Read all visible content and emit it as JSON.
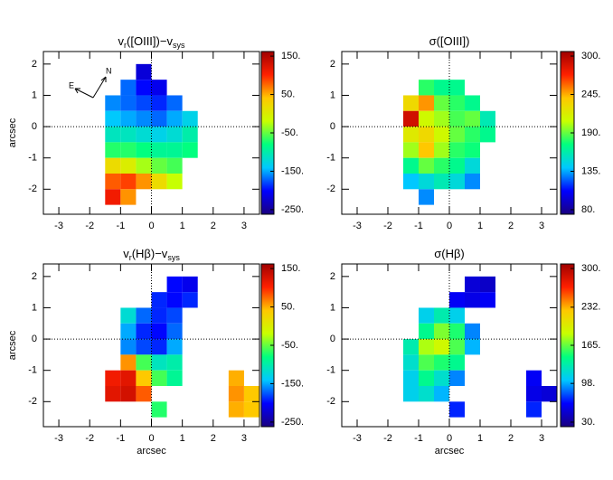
{
  "chart_data": [
    {
      "type": "heatmap",
      "title": [
        "v",
        "r",
        "([OIII])−v",
        "sys"
      ],
      "ylabel": "arcsec",
      "compass": {
        "east": "E",
        "north": "N"
      },
      "cell": 0.5,
      "x": [
        -1.75,
        -1.25,
        -0.75,
        -0.25,
        0.25,
        0.75,
        1.25,
        1.75,
        2.25,
        2.75,
        3.25
      ],
      "y": [
        1.75,
        1.25,
        0.75,
        0.25,
        -0.25,
        -0.75,
        -1.25,
        -1.75,
        -2.25
      ],
      "z": [
        [
          null,
          null,
          null,
          -220,
          null,
          null,
          null,
          null,
          null,
          null,
          null
        ],
        [
          null,
          null,
          -170,
          -200,
          -210,
          null,
          null,
          null,
          null,
          null,
          null
        ],
        [
          null,
          -160,
          -170,
          -180,
          -190,
          -170,
          null,
          null,
          null,
          null,
          null
        ],
        [
          null,
          -140,
          -150,
          -160,
          -170,
          -150,
          -130,
          null,
          null,
          null,
          null
        ],
        [
          null,
          -110,
          -110,
          -120,
          -130,
          -120,
          -100,
          null,
          null,
          null,
          null
        ],
        [
          null,
          -70,
          -70,
          -80,
          -90,
          -90,
          -80,
          null,
          null,
          null,
          null
        ],
        [
          null,
          20,
          0,
          -30,
          -50,
          -60,
          null,
          null,
          null,
          null,
          null
        ],
        [
          null,
          80,
          90,
          60,
          20,
          -20,
          null,
          null,
          null,
          null,
          null
        ],
        [
          null,
          110,
          60,
          null,
          null,
          null,
          null,
          null,
          null,
          null,
          null
        ]
      ],
      "xlim": [
        -3.5,
        3.5
      ],
      "ylim": [
        -2.8,
        2.4
      ],
      "xticks": [
        -3,
        -2,
        -1,
        0,
        1,
        2,
        3
      ],
      "yticks": [
        -2,
        -1,
        0,
        1,
        2
      ],
      "clim": [
        -262,
        162
      ],
      "cticks": [
        {
          "value": 150,
          "label": "150."
        },
        {
          "value": 50,
          "label": "50."
        },
        {
          "value": -50,
          "label": "-50."
        },
        {
          "value": -150,
          "label": "-150."
        },
        {
          "value": -250,
          "label": "-250."
        }
      ],
      "colormap": [
        "#1a0080",
        "#0000ff",
        "#00c8ff",
        "#00ff80",
        "#c8ff00",
        "#ffc800",
        "#ff2000",
        "#a00000"
      ]
    },
    {
      "type": "heatmap",
      "title": [
        "σ([OIII])"
      ],
      "cell": 0.5,
      "x": [
        -1.75,
        -1.25,
        -0.75,
        -0.25,
        0.25,
        0.75,
        1.25,
        1.75,
        2.25,
        2.75,
        3.25
      ],
      "y": [
        1.75,
        1.25,
        0.75,
        0.25,
        -0.25,
        -0.75,
        -1.25,
        -1.75,
        -2.25
      ],
      "z": [
        [
          null,
          null,
          null,
          null,
          null,
          null,
          null,
          null,
          null,
          null,
          null
        ],
        [
          null,
          null,
          180,
          170,
          170,
          null,
          null,
          null,
          null,
          null,
          null
        ],
        [
          null,
          230,
          250,
          190,
          180,
          170,
          null,
          null,
          null,
          null,
          null
        ],
        [
          null,
          290,
          210,
          200,
          185,
          190,
          160,
          null,
          null,
          null,
          null
        ],
        [
          null,
          220,
          230,
          210,
          190,
          180,
          170,
          null,
          null,
          null,
          null
        ],
        [
          null,
          200,
          240,
          200,
          180,
          175,
          null,
          null,
          null,
          null,
          null
        ],
        [
          null,
          170,
          190,
          180,
          170,
          150,
          null,
          null,
          null,
          null,
          null
        ],
        [
          null,
          140,
          150,
          160,
          150,
          130,
          null,
          null,
          null,
          null,
          null
        ],
        [
          null,
          null,
          130,
          null,
          null,
          null,
          null,
          null,
          null,
          null,
          null
        ]
      ],
      "xlim": [
        -3.5,
        3.5
      ],
      "ylim": [
        -2.8,
        2.4
      ],
      "xticks": [
        -3,
        -2,
        -1,
        0,
        1,
        2,
        3
      ],
      "yticks": [
        -2,
        -1,
        0,
        1,
        2
      ],
      "clim": [
        73.5,
        306.5
      ],
      "cticks": [
        {
          "value": 300,
          "label": "300."
        },
        {
          "value": 245,
          "label": "245."
        },
        {
          "value": 190,
          "label": "190."
        },
        {
          "value": 135,
          "label": "135."
        },
        {
          "value": 80,
          "label": "80."
        }
      ],
      "colormap": [
        "#1a0080",
        "#0000ff",
        "#00c8ff",
        "#00ff80",
        "#c8ff00",
        "#ffc800",
        "#ff2000",
        "#a00000"
      ]
    },
    {
      "type": "heatmap",
      "title": [
        "v",
        "r",
        "(Hβ)−v",
        "sys"
      ],
      "ylabel": "arcsec",
      "xlabel": "arcsec",
      "cell": 0.5,
      "x": [
        -1.75,
        -1.25,
        -0.75,
        -0.25,
        0.25,
        0.75,
        1.25,
        1.75,
        2.25,
        2.75,
        3.25
      ],
      "y": [
        1.75,
        1.25,
        0.75,
        0.25,
        -0.25,
        -0.75,
        -1.25,
        -1.75,
        -2.25
      ],
      "z": [
        [
          null,
          null,
          null,
          null,
          null,
          -200,
          -210,
          null,
          null,
          null,
          null
        ],
        [
          null,
          null,
          null,
          null,
          -190,
          -200,
          -190,
          null,
          null,
          null,
          null
        ],
        [
          null,
          null,
          -120,
          -170,
          -190,
          -180,
          null,
          null,
          null,
          null,
          null
        ],
        [
          null,
          null,
          -150,
          -190,
          -200,
          -170,
          null,
          null,
          null,
          null,
          null
        ],
        [
          null,
          null,
          -160,
          -180,
          -190,
          -150,
          null,
          null,
          null,
          null,
          null
        ],
        [
          null,
          null,
          60,
          -60,
          -110,
          -100,
          null,
          null,
          null,
          null,
          null
        ],
        [
          null,
          110,
          120,
          40,
          -60,
          -90,
          null,
          null,
          null,
          50,
          null
        ],
        [
          null,
          120,
          130,
          80,
          null,
          null,
          null,
          null,
          null,
          60,
          40
        ],
        [
          null,
          null,
          null,
          null,
          -70,
          null,
          null,
          null,
          null,
          50,
          40
        ]
      ],
      "xlim": [
        -3.5,
        3.5
      ],
      "ylim": [
        -2.8,
        2.4
      ],
      "xticks": [
        -3,
        -2,
        -1,
        0,
        1,
        2,
        3
      ],
      "yticks": [
        -2,
        -1,
        0,
        1,
        2
      ],
      "clim": [
        -262,
        162
      ],
      "cticks": [
        {
          "value": 150,
          "label": "150."
        },
        {
          "value": 50,
          "label": "50."
        },
        {
          "value": -50,
          "label": "-50."
        },
        {
          "value": -150,
          "label": "-150."
        },
        {
          "value": -250,
          "label": "-250."
        }
      ],
      "colormap": [
        "#1a0080",
        "#0000ff",
        "#00c8ff",
        "#00ff80",
        "#c8ff00",
        "#ffc800",
        "#ff2000",
        "#a00000"
      ]
    },
    {
      "type": "heatmap",
      "title": [
        "σ(Hβ)"
      ],
      "xlabel": "arcsec",
      "cell": 0.5,
      "x": [
        -1.75,
        -1.25,
        -0.75,
        -0.25,
        0.25,
        0.75,
        1.25,
        1.75,
        2.25,
        2.75,
        3.25
      ],
      "y": [
        1.75,
        1.25,
        0.75,
        0.25,
        -0.25,
        -0.75,
        -1.25,
        -1.75,
        -2.25
      ],
      "z": [
        [
          null,
          null,
          null,
          null,
          null,
          50,
          45,
          null,
          null,
          null,
          null
        ],
        [
          null,
          null,
          null,
          null,
          60,
          55,
          60,
          null,
          null,
          null,
          null
        ],
        [
          null,
          null,
          110,
          130,
          110,
          null,
          null,
          null,
          null,
          null,
          null
        ],
        [
          null,
          null,
          140,
          170,
          150,
          90,
          null,
          null,
          null,
          null,
          null
        ],
        [
          null,
          130,
          180,
          190,
          160,
          100,
          null,
          null,
          null,
          null,
          null
        ],
        [
          null,
          120,
          160,
          150,
          140,
          null,
          null,
          null,
          null,
          null,
          null
        ],
        [
          null,
          110,
          140,
          120,
          90,
          null,
          null,
          null,
          null,
          60,
          null
        ],
        [
          null,
          110,
          120,
          100,
          null,
          null,
          null,
          null,
          null,
          55,
          50
        ],
        [
          null,
          null,
          null,
          null,
          70,
          null,
          null,
          null,
          null,
          70,
          null
        ]
      ],
      "xlim": [
        -3.5,
        3.5
      ],
      "ylim": [
        -2.8,
        2.4
      ],
      "xticks": [
        -3,
        -2,
        -1,
        0,
        1,
        2,
        3
      ],
      "yticks": [
        -2,
        -1,
        0,
        1,
        2
      ],
      "clim": [
        22,
        308
      ],
      "cticks": [
        {
          "value": 300,
          "label": "300."
        },
        {
          "value": 232,
          "label": "232."
        },
        {
          "value": 165,
          "label": "165."
        },
        {
          "value": 98,
          "label": "98."
        },
        {
          "value": 30,
          "label": "30."
        }
      ],
      "colormap": [
        "#1a0080",
        "#0000ff",
        "#00c8ff",
        "#00ff80",
        "#c8ff00",
        "#ffc800",
        "#ff2000",
        "#a00000"
      ]
    }
  ]
}
